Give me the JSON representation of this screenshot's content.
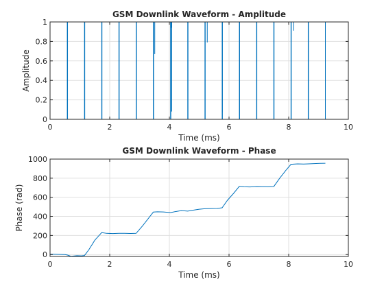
{
  "chart_data": [
    {
      "type": "line",
      "title": "GSM Downlink Waveform - Amplitude",
      "xlabel": "Time (ms)",
      "ylabel": "Amplitude",
      "xlim": [
        0,
        10
      ],
      "ylim": [
        0,
        1
      ],
      "xticks": [
        0,
        2,
        4,
        6,
        8,
        10
      ],
      "yticks": [
        0,
        0.2,
        0.4,
        0.6,
        0.8,
        1
      ],
      "xtick_labels": [
        "0",
        "2",
        "4",
        "6",
        "8",
        "10"
      ],
      "ytick_labels": [
        "0",
        "0.2",
        "0.4",
        "0.6",
        "0.8",
        "1"
      ],
      "grid": true,
      "line_color": "#0072BD",
      "series": [
        {
          "signal_span_ms": [
            0,
            9.23
          ],
          "high_level": 1,
          "low_level": 0,
          "gaps_ms": [
            [
              0,
              0.577
            ],
            [
              0.587,
              1.154
            ],
            [
              1.164,
              1.731
            ],
            [
              1.741,
              2.308
            ],
            [
              2.318,
              2.885
            ],
            [
              2.895,
              3.462
            ],
            [
              3.472,
              4.039
            ],
            [
              4.049,
              4.615
            ],
            [
              4.625,
              5.192
            ],
            [
              5.202,
              5.769
            ],
            [
              5.779,
              6.346
            ],
            [
              6.356,
              6.923
            ],
            [
              6.933,
              7.5
            ],
            [
              7.51,
              8.077
            ],
            [
              8.087,
              8.654
            ],
            [
              8.664,
              9.23
            ]
          ],
          "dips": [
            {
              "x": 3.51,
              "y": 0.67
            },
            {
              "x": 4.07,
              "y": 0.94
            },
            {
              "x": 4.08,
              "y": 0.08
            },
            {
              "x": 4.62,
              "y": 0.55
            },
            {
              "x": 5.27,
              "y": 0.79
            },
            {
              "x": 5.78,
              "y": 0.07
            },
            {
              "x": 8.17,
              "y": 0.91
            }
          ]
        }
      ]
    },
    {
      "type": "line",
      "title": "GSM Downlink Waveform - Phase",
      "xlabel": "Time (ms)",
      "ylabel": "Phase (rad)",
      "xlim": [
        0,
        10
      ],
      "ylim": [
        -20,
        1000
      ],
      "xticks": [
        0,
        2,
        4,
        6,
        8,
        10
      ],
      "yticks": [
        0,
        200,
        400,
        600,
        800,
        1000
      ],
      "xtick_labels": [
        "0",
        "2",
        "4",
        "6",
        "8",
        "10"
      ],
      "ytick_labels": [
        "0",
        "200",
        "400",
        "600",
        "800",
        "1000"
      ],
      "grid": true,
      "line_color": "#0072BD",
      "series": [
        {
          "x": [
            0,
            0.3,
            0.5,
            0.577,
            0.7,
            0.9,
            1.05,
            1.154,
            1.3,
            1.5,
            1.731,
            1.9,
            2.1,
            2.308,
            2.5,
            2.7,
            2.885,
            3.1,
            3.3,
            3.462,
            3.6,
            3.8,
            4.039,
            4.2,
            4.4,
            4.615,
            4.8,
            5.0,
            5.192,
            5.4,
            5.6,
            5.769,
            5.95,
            6.15,
            6.346,
            6.5,
            6.7,
            6.923,
            7.1,
            7.3,
            7.5,
            7.7,
            7.9,
            8.077,
            8.3,
            8.5,
            8.654,
            8.85,
            9.05,
            9.23
          ],
          "y": [
            4,
            2,
            0,
            -5,
            -18,
            -12,
            -14,
            -10,
            50,
            150,
            230,
            222,
            220,
            222,
            222,
            221,
            222,
            300,
            380,
            445,
            448,
            446,
            440,
            450,
            460,
            455,
            465,
            475,
            480,
            482,
            483,
            490,
            570,
            640,
            715,
            710,
            708,
            712,
            711,
            710,
            712,
            800,
            880,
            945,
            950,
            948,
            950,
            952,
            955,
            956
          ]
        }
      ]
    }
  ]
}
